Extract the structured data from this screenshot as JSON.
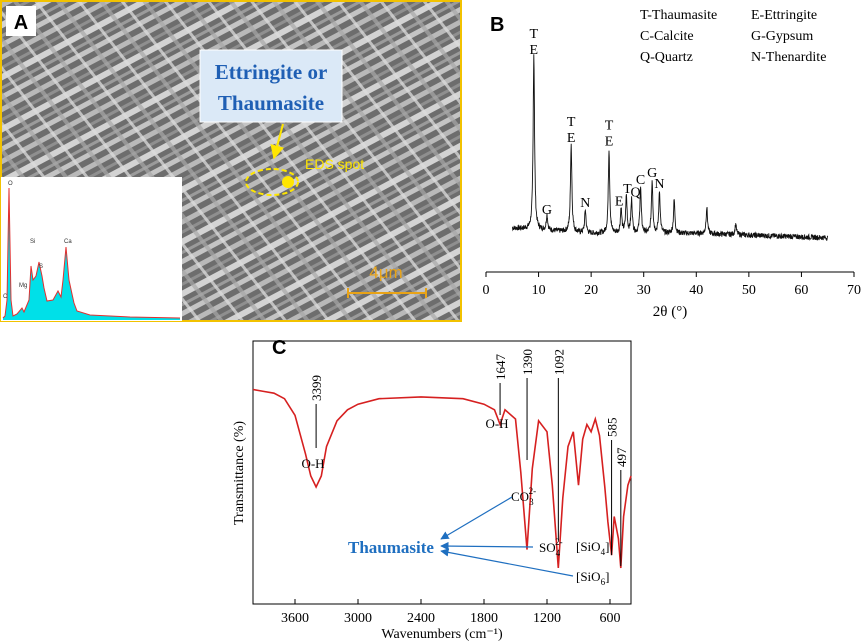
{
  "panels": {
    "a": {
      "letter": "A",
      "callout_line1": "Ettringite or",
      "callout_line2": "Thaumasite",
      "spot_label": "EDS spot",
      "scale_label": "4μm",
      "eds_labels": [
        "O",
        "C",
        "Mg",
        "Si",
        "S",
        "Ca"
      ],
      "colors": {
        "border": "#f2c200",
        "callout_text": "#1f5fb4",
        "callout_fill": "#dbe9f7",
        "marker": "#ffe600",
        "eds_fill": "#00e0e8",
        "eds_line": "#e23030",
        "scale": "#e8a317"
      }
    },
    "b": {
      "letter": "B"
    },
    "c": {
      "letter": "C"
    }
  },
  "chart_data": [
    {
      "type": "line",
      "panel": "B",
      "xlabel": "2θ (°)",
      "xlim": [
        0,
        70
      ],
      "xticks": [
        0,
        10,
        20,
        30,
        40,
        50,
        60,
        70
      ],
      "legend": [
        "T-Thaumasite",
        "E-Ettringite",
        "C-Calcite",
        "G-Gypsum",
        "Q-Quartz",
        "N-Thenardite"
      ],
      "legend_placement": "top-right",
      "y_axis_shown": false,
      "peaks": [
        {
          "x": 9.1,
          "intensity": 1.0,
          "label": [
            "T",
            "E"
          ]
        },
        {
          "x": 11.6,
          "intensity": 0.09,
          "label": [
            "G"
          ]
        },
        {
          "x": 16.2,
          "intensity": 0.5,
          "label": [
            "T",
            "E"
          ]
        },
        {
          "x": 18.9,
          "intensity": 0.13,
          "label": [
            "N"
          ]
        },
        {
          "x": 23.4,
          "intensity": 0.48,
          "label": [
            "T",
            "E"
          ]
        },
        {
          "x": 25.7,
          "intensity": 0.14,
          "label": [
            "E"
          ]
        },
        {
          "x": 26.7,
          "intensity": 0.21,
          "label": [
            "T"
          ]
        },
        {
          "x": 27.7,
          "intensity": 0.19,
          "label": [
            "Q"
          ]
        },
        {
          "x": 29.4,
          "intensity": 0.26,
          "label": [
            "C"
          ]
        },
        {
          "x": 31.6,
          "intensity": 0.3,
          "label": [
            "G"
          ]
        },
        {
          "x": 33.0,
          "intensity": 0.24,
          "label": [
            "N"
          ]
        },
        {
          "x": 35.8,
          "intensity": 0.19,
          "label": []
        },
        {
          "x": 42.0,
          "intensity": 0.15,
          "label": []
        },
        {
          "x": 47.5,
          "intensity": 0.06,
          "label": []
        }
      ]
    },
    {
      "type": "line",
      "panel": "C",
      "xlabel": "Wavenumbers (cm⁻¹)",
      "ylabel": "Transmittance (%)",
      "xlim": [
        4000,
        400
      ],
      "xticks": [
        3600,
        3000,
        2400,
        1800,
        1200,
        600
      ],
      "series_color": "#d62020",
      "points": [
        [
          4000,
          0.03
        ],
        [
          3900,
          0.04
        ],
        [
          3800,
          0.05
        ],
        [
          3700,
          0.08
        ],
        [
          3600,
          0.17
        ],
        [
          3500,
          0.38
        ],
        [
          3450,
          0.5
        ],
        [
          3399,
          0.56
        ],
        [
          3350,
          0.5
        ],
        [
          3300,
          0.34
        ],
        [
          3200,
          0.2
        ],
        [
          3100,
          0.14
        ],
        [
          3000,
          0.11
        ],
        [
          2800,
          0.08
        ],
        [
          2400,
          0.07
        ],
        [
          2000,
          0.08
        ],
        [
          1800,
          0.11
        ],
        [
          1700,
          0.14
        ],
        [
          1647,
          0.22
        ],
        [
          1600,
          0.14
        ],
        [
          1500,
          0.19
        ],
        [
          1450,
          0.48
        ],
        [
          1390,
          0.9
        ],
        [
          1340,
          0.46
        ],
        [
          1280,
          0.2
        ],
        [
          1200,
          0.26
        ],
        [
          1150,
          0.55
        ],
        [
          1092,
          1.0
        ],
        [
          1050,
          0.62
        ],
        [
          1000,
          0.34
        ],
        [
          950,
          0.26
        ],
        [
          900,
          0.55
        ],
        [
          860,
          0.3
        ],
        [
          820,
          0.22
        ],
        [
          780,
          0.26
        ],
        [
          740,
          0.19
        ],
        [
          700,
          0.28
        ],
        [
          650,
          0.56
        ],
        [
          620,
          0.75
        ],
        [
          585,
          0.93
        ],
        [
          560,
          0.72
        ],
        [
          520,
          0.84
        ],
        [
          497,
          1.0
        ],
        [
          470,
          0.72
        ],
        [
          430,
          0.55
        ],
        [
          400,
          0.5
        ]
      ],
      "peak_labels": [
        {
          "x": 3399,
          "text": "3399"
        },
        {
          "x": 1647,
          "text": "1647"
        },
        {
          "x": 1390,
          "text": "1390"
        },
        {
          "x": 1092,
          "text": "1092"
        },
        {
          "x": 585,
          "text": "585"
        },
        {
          "x": 497,
          "text": "497"
        }
      ],
      "band_labels": [
        {
          "key": "oh1",
          "text": "O-H"
        },
        {
          "key": "oh2",
          "text": "O-H"
        },
        {
          "key": "co3",
          "text": "CO",
          "sub": "3",
          "sup": "2-"
        },
        {
          "key": "so4",
          "text": "SO",
          "sub": "4",
          "sup": "2-"
        },
        {
          "key": "sio4",
          "text": "[SiO",
          "sub": "4",
          "suffix": "]"
        },
        {
          "key": "sio6",
          "text": "[SiO",
          "sub": "6",
          "suffix": "]"
        }
      ],
      "annotation": "Thaumasite",
      "annotation_color": "#1f6fc0"
    }
  ]
}
